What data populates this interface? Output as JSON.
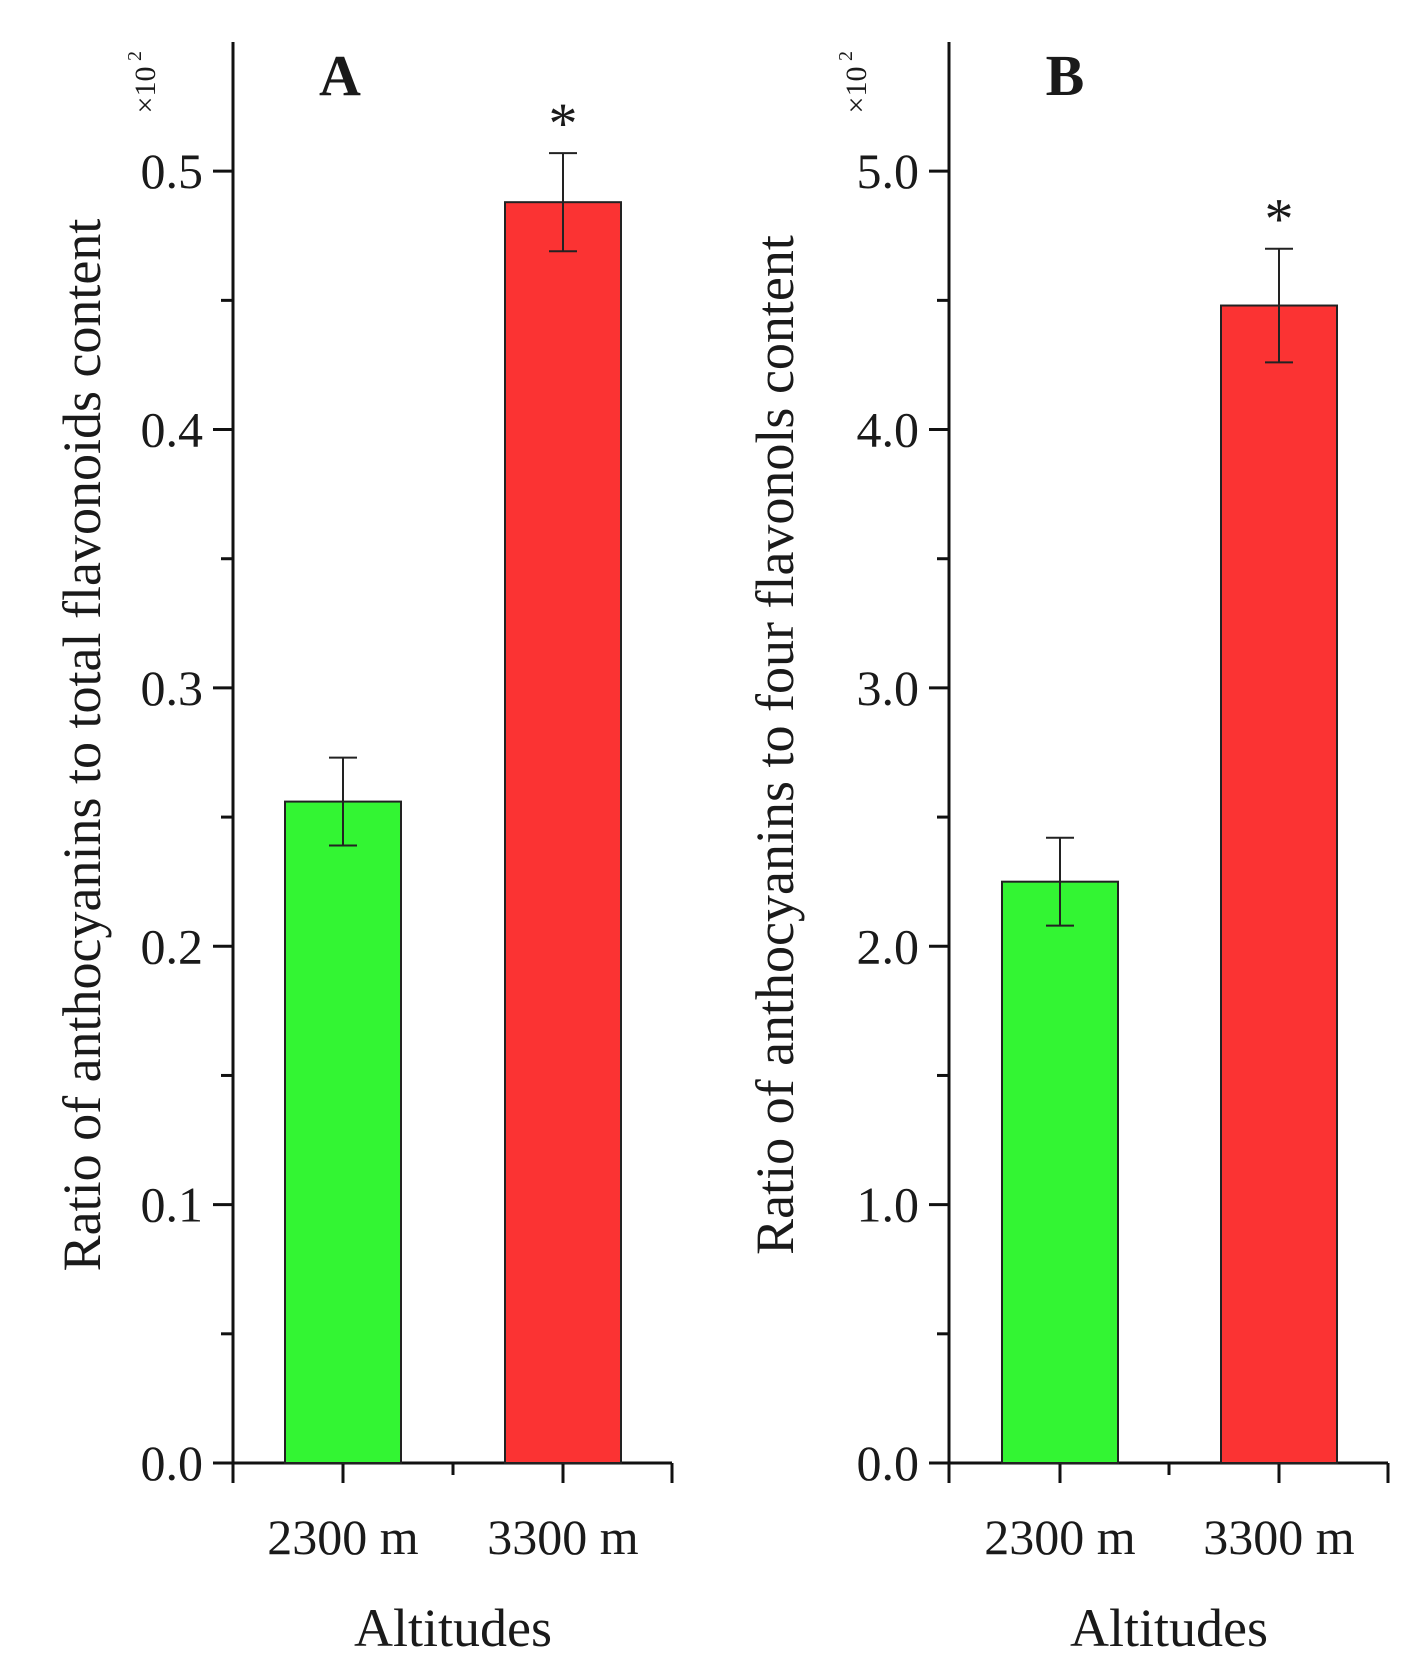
{
  "chart_data": [
    {
      "type": "bar",
      "panel_label": "A",
      "categories": [
        "2300 m",
        "3300 m"
      ],
      "values": [
        0.256,
        0.488
      ],
      "errors": [
        0.017,
        0.019
      ],
      "significance": [
        "",
        "*"
      ],
      "bar_colors": [
        "#33f533",
        "#fb3333"
      ],
      "xlabel": "Altitudes",
      "ylabel": "Ratio of anthocyanins to total  flavonoids content",
      "ylim": [
        0,
        0.55
      ],
      "yticks": [
        0.0,
        0.1,
        0.2,
        0.3,
        0.4,
        0.5
      ],
      "ytick_labels": [
        "0.0",
        "0.1",
        "0.2",
        "0.3",
        "0.4",
        "0.5"
      ],
      "yminor_ticks": [
        0.05,
        0.15,
        0.25,
        0.35,
        0.45
      ],
      "scale_text": "×10",
      "scale_exp": "2",
      "grid": false
    },
    {
      "type": "bar",
      "panel_label": "B",
      "categories": [
        "2300 m",
        "3300 m"
      ],
      "values": [
        2.25,
        4.48
      ],
      "errors": [
        0.17,
        0.22
      ],
      "significance": [
        "",
        "*"
      ],
      "bar_colors": [
        "#33f533",
        "#fb3333"
      ],
      "xlabel": "Altitudes",
      "ylabel": "Ratio of anthocyanins to four  flavonols content",
      "ylim": [
        0,
        5.5
      ],
      "yticks": [
        0.0,
        1.0,
        2.0,
        3.0,
        4.0,
        5.0
      ],
      "ytick_labels": [
        "0.0",
        "1.0",
        "2.0",
        "3.0",
        "4.0",
        "5.0"
      ],
      "yminor_ticks": [
        0.5,
        1.5,
        2.5,
        3.5,
        4.5
      ],
      "scale_text": "×10",
      "scale_exp": "2",
      "grid": false
    }
  ]
}
